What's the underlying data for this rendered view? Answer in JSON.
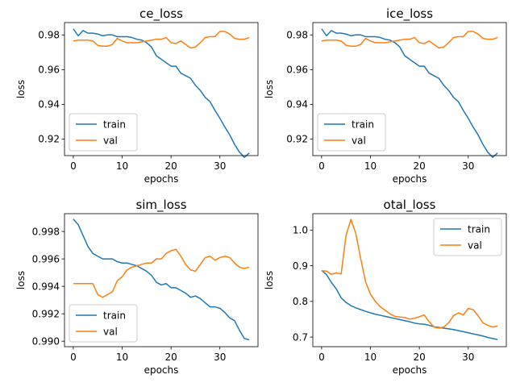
{
  "chart_data": [
    {
      "type": "line",
      "title": "ce_loss",
      "xlabel": "epochs",
      "ylabel": "loss",
      "xlim": [
        -1.8,
        37.8
      ],
      "ylim": [
        0.9105,
        0.9871
      ],
      "xticks": [
        0,
        10,
        20,
        30
      ],
      "yticks": [
        0.92,
        0.94,
        0.96,
        0.98
      ],
      "ytick_labels": [
        "0.92",
        "0.94",
        "0.96",
        "0.98"
      ],
      "legend_position": "lower-left",
      "series": [
        {
          "name": "train",
          "color": "#1f77b4",
          "x": [
            0,
            1,
            2,
            3,
            4,
            5,
            6,
            7,
            8,
            9,
            10,
            11,
            12,
            13,
            14,
            15,
            16,
            17,
            18,
            19,
            20,
            21,
            22,
            23,
            24,
            25,
            26,
            27,
            28,
            29,
            30,
            31,
            32,
            33,
            34,
            35,
            36
          ],
          "values": [
            0.9835,
            0.9795,
            0.9825,
            0.981,
            0.981,
            0.9805,
            0.9795,
            0.98,
            0.98,
            0.979,
            0.979,
            0.979,
            0.9785,
            0.9775,
            0.977,
            0.9755,
            0.973,
            0.968,
            0.966,
            0.964,
            0.962,
            0.962,
            0.958,
            0.9565,
            0.955,
            0.951,
            0.948,
            0.944,
            0.9415,
            0.9365,
            0.932,
            0.927,
            0.9225,
            0.917,
            0.9125,
            0.9095,
            0.912
          ]
        },
        {
          "name": "val",
          "color": "#ff7f0e",
          "x": [
            0,
            1,
            2,
            3,
            4,
            5,
            6,
            7,
            8,
            9,
            10,
            11,
            12,
            13,
            14,
            15,
            16,
            17,
            18,
            19,
            20,
            21,
            22,
            23,
            24,
            25,
            26,
            27,
            28,
            29,
            30,
            31,
            32,
            33,
            34,
            35,
            36
          ],
          "values": [
            0.9765,
            0.977,
            0.977,
            0.977,
            0.9765,
            0.974,
            0.9735,
            0.9735,
            0.9745,
            0.978,
            0.9765,
            0.9755,
            0.9755,
            0.9755,
            0.976,
            0.9765,
            0.977,
            0.9775,
            0.9775,
            0.9785,
            0.9755,
            0.975,
            0.9765,
            0.9745,
            0.9725,
            0.973,
            0.9755,
            0.9785,
            0.979,
            0.979,
            0.982,
            0.982,
            0.9805,
            0.978,
            0.9775,
            0.9775,
            0.9785
          ]
        }
      ]
    },
    {
      "type": "line",
      "title": "ice_loss",
      "xlabel": "epochs",
      "ylabel": "loss",
      "xlim": [
        -1.8,
        37.8
      ],
      "ylim": [
        0.9105,
        0.9871
      ],
      "xticks": [
        0,
        10,
        20,
        30
      ],
      "yticks": [
        0.92,
        0.94,
        0.96,
        0.98
      ],
      "ytick_labels": [
        "0.92",
        "0.94",
        "0.96",
        "0.98"
      ],
      "legend_position": "lower-left",
      "series": [
        {
          "name": "train",
          "color": "#1f77b4",
          "x": [
            0,
            1,
            2,
            3,
            4,
            5,
            6,
            7,
            8,
            9,
            10,
            11,
            12,
            13,
            14,
            15,
            16,
            17,
            18,
            19,
            20,
            21,
            22,
            23,
            24,
            25,
            26,
            27,
            28,
            29,
            30,
            31,
            32,
            33,
            34,
            35,
            36
          ],
          "values": [
            0.9835,
            0.9795,
            0.9825,
            0.981,
            0.981,
            0.9805,
            0.9795,
            0.98,
            0.98,
            0.979,
            0.979,
            0.979,
            0.9785,
            0.9775,
            0.977,
            0.9755,
            0.973,
            0.968,
            0.966,
            0.964,
            0.962,
            0.962,
            0.958,
            0.9565,
            0.955,
            0.951,
            0.948,
            0.944,
            0.9415,
            0.9365,
            0.932,
            0.927,
            0.9225,
            0.917,
            0.9125,
            0.9095,
            0.912
          ]
        },
        {
          "name": "val",
          "color": "#ff7f0e",
          "x": [
            0,
            1,
            2,
            3,
            4,
            5,
            6,
            7,
            8,
            9,
            10,
            11,
            12,
            13,
            14,
            15,
            16,
            17,
            18,
            19,
            20,
            21,
            22,
            23,
            24,
            25,
            26,
            27,
            28,
            29,
            30,
            31,
            32,
            33,
            34,
            35,
            36
          ],
          "values": [
            0.9765,
            0.977,
            0.977,
            0.977,
            0.9765,
            0.974,
            0.9735,
            0.9735,
            0.9745,
            0.978,
            0.9765,
            0.9755,
            0.9755,
            0.9755,
            0.976,
            0.9765,
            0.977,
            0.9775,
            0.9775,
            0.9785,
            0.9755,
            0.975,
            0.9765,
            0.9745,
            0.9725,
            0.973,
            0.9755,
            0.9785,
            0.979,
            0.979,
            0.982,
            0.982,
            0.9805,
            0.978,
            0.9775,
            0.9775,
            0.9785
          ]
        }
      ]
    },
    {
      "type": "line",
      "title": "sim_loss",
      "xlabel": "epochs",
      "ylabel": "loss",
      "xlim": [
        -1.8,
        37.8
      ],
      "ylim": [
        0.9896,
        0.9993
      ],
      "xticks": [
        0,
        10,
        20,
        30
      ],
      "yticks": [
        0.99,
        0.992,
        0.994,
        0.996,
        0.998
      ],
      "ytick_labels": [
        "0.990",
        "0.992",
        "0.994",
        "0.996",
        "0.998"
      ],
      "legend_position": "lower-left",
      "series": [
        {
          "name": "train",
          "color": "#1f77b4",
          "x": [
            0,
            1,
            2,
            3,
            4,
            5,
            6,
            7,
            8,
            9,
            10,
            11,
            12,
            13,
            14,
            15,
            16,
            17,
            18,
            19,
            20,
            21,
            22,
            23,
            24,
            25,
            26,
            27,
            28,
            29,
            30,
            31,
            32,
            33,
            34,
            35,
            36
          ],
          "values": [
            0.9989,
            0.9985,
            0.9977,
            0.9969,
            0.9964,
            0.9962,
            0.996,
            0.996,
            0.996,
            0.9958,
            0.9957,
            0.9957,
            0.9956,
            0.9955,
            0.9953,
            0.9951,
            0.9948,
            0.9943,
            0.9941,
            0.9942,
            0.9939,
            0.9939,
            0.9937,
            0.9935,
            0.9932,
            0.9933,
            0.9931,
            0.9928,
            0.9925,
            0.9925,
            0.9924,
            0.9921,
            0.9917,
            0.9915,
            0.9908,
            0.9902,
            0.9901
          ]
        },
        {
          "name": "val",
          "color": "#ff7f0e",
          "x": [
            0,
            1,
            2,
            3,
            4,
            5,
            6,
            7,
            8,
            9,
            10,
            11,
            12,
            13,
            14,
            15,
            16,
            17,
            18,
            19,
            20,
            21,
            22,
            23,
            24,
            25,
            26,
            27,
            28,
            29,
            30,
            31,
            32,
            33,
            34,
            35,
            36
          ],
          "values": [
            0.9942,
            0.9942,
            0.9942,
            0.9942,
            0.9942,
            0.9934,
            0.9932,
            0.9934,
            0.9936,
            0.9944,
            0.9947,
            0.9952,
            0.9954,
            0.9955,
            0.9956,
            0.9957,
            0.9957,
            0.996,
            0.996,
            0.9964,
            0.9966,
            0.9967,
            0.9962,
            0.9956,
            0.9952,
            0.9951,
            0.9956,
            0.9961,
            0.9962,
            0.9959,
            0.9961,
            0.9962,
            0.9961,
            0.9957,
            0.9954,
            0.9953,
            0.9954
          ]
        }
      ]
    },
    {
      "type": "line",
      "title": "otal_loss",
      "xlabel": "epochs",
      "ylabel": "loss",
      "xlim": [
        -1.8,
        37.8
      ],
      "ylim": [
        0.673,
        1.046
      ],
      "xticks": [
        0,
        10,
        20,
        30
      ],
      "yticks": [
        0.7,
        0.8,
        0.9,
        1.0
      ],
      "ytick_labels": [
        "0.7",
        "0.8",
        "0.9",
        "1.0"
      ],
      "legend_position": "upper-right",
      "series": [
        {
          "name": "train",
          "color": "#1f77b4",
          "x": [
            0,
            1,
            2,
            3,
            4,
            5,
            6,
            7,
            8,
            9,
            10,
            11,
            12,
            13,
            14,
            15,
            16,
            17,
            18,
            19,
            20,
            21,
            22,
            23,
            24,
            25,
            26,
            27,
            28,
            29,
            30,
            31,
            32,
            33,
            34,
            35,
            36
          ],
          "values": [
            0.887,
            0.875,
            0.853,
            0.835,
            0.81,
            0.797,
            0.788,
            0.782,
            0.777,
            0.772,
            0.768,
            0.764,
            0.761,
            0.758,
            0.755,
            0.752,
            0.749,
            0.746,
            0.743,
            0.739,
            0.737,
            0.736,
            0.733,
            0.729,
            0.727,
            0.725,
            0.723,
            0.721,
            0.718,
            0.715,
            0.712,
            0.709,
            0.706,
            0.703,
            0.699,
            0.696,
            0.693
          ]
        },
        {
          "name": "val",
          "color": "#ff7f0e",
          "x": [
            0,
            1,
            2,
            3,
            4,
            5,
            6,
            7,
            8,
            9,
            10,
            11,
            12,
            13,
            14,
            15,
            16,
            17,
            18,
            19,
            20,
            21,
            22,
            23,
            24,
            25,
            26,
            27,
            28,
            29,
            30,
            31,
            32,
            33,
            34,
            35,
            36
          ],
          "values": [
            0.886,
            0.885,
            0.876,
            0.88,
            0.877,
            0.985,
            1.03,
            0.99,
            0.92,
            0.855,
            0.82,
            0.8,
            0.785,
            0.775,
            0.765,
            0.758,
            0.756,
            0.755,
            0.75,
            0.753,
            0.757,
            0.762,
            0.743,
            0.728,
            0.725,
            0.728,
            0.74,
            0.76,
            0.768,
            0.762,
            0.78,
            0.777,
            0.76,
            0.74,
            0.733,
            0.728,
            0.731
          ]
        }
      ]
    }
  ]
}
